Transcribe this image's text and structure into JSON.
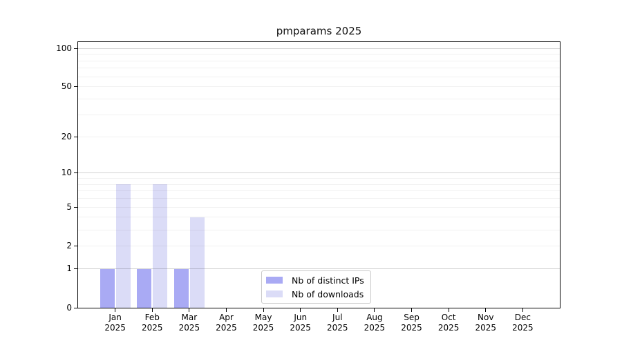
{
  "chart_data": {
    "type": "bar",
    "title": "pmparams 2025",
    "categories": [
      "Jan",
      "Feb",
      "Mar",
      "Apr",
      "May",
      "Jun",
      "Jul",
      "Aug",
      "Sep",
      "Oct",
      "Nov",
      "Dec"
    ],
    "x_tick_sublabel": "2025",
    "series": [
      {
        "name": "Nb of distinct IPs",
        "color": "#a9aaf4",
        "values": [
          1,
          1,
          1,
          0,
          0,
          0,
          0,
          0,
          0,
          0,
          0,
          0
        ]
      },
      {
        "name": "Nb of downloads",
        "color": "#dbdcf7",
        "values": [
          8,
          8,
          4,
          0,
          0,
          0,
          0,
          0,
          0,
          0,
          0,
          0
        ]
      }
    ],
    "xlabel": "",
    "ylabel": "",
    "yscale": "log10(value+1)",
    "ylim": [
      0,
      112
    ],
    "y_tick_values": [
      0,
      1,
      2,
      5,
      10,
      20,
      50,
      100
    ],
    "y_tick_labels": [
      "0",
      "1",
      "2",
      "5",
      "10",
      "20",
      "50",
      "100"
    ],
    "grid": true,
    "grid_minor_values": [
      2,
      3,
      4,
      5,
      6,
      7,
      8,
      9,
      20,
      30,
      40,
      50,
      60,
      70,
      80,
      90
    ],
    "grid_decade_values": [
      1,
      10,
      100
    ],
    "legend": {
      "position": "lower center"
    },
    "colors": {
      "bar_distinct_ips": "#a9aaf4",
      "bar_downloads": "#dbdcf7",
      "grid_minor": "#0000000e",
      "grid_decade": "#0000002e",
      "axis": "#000000",
      "text": "#000000",
      "legend_border": "#c9c9c9",
      "background": "#ffffff"
    }
  }
}
